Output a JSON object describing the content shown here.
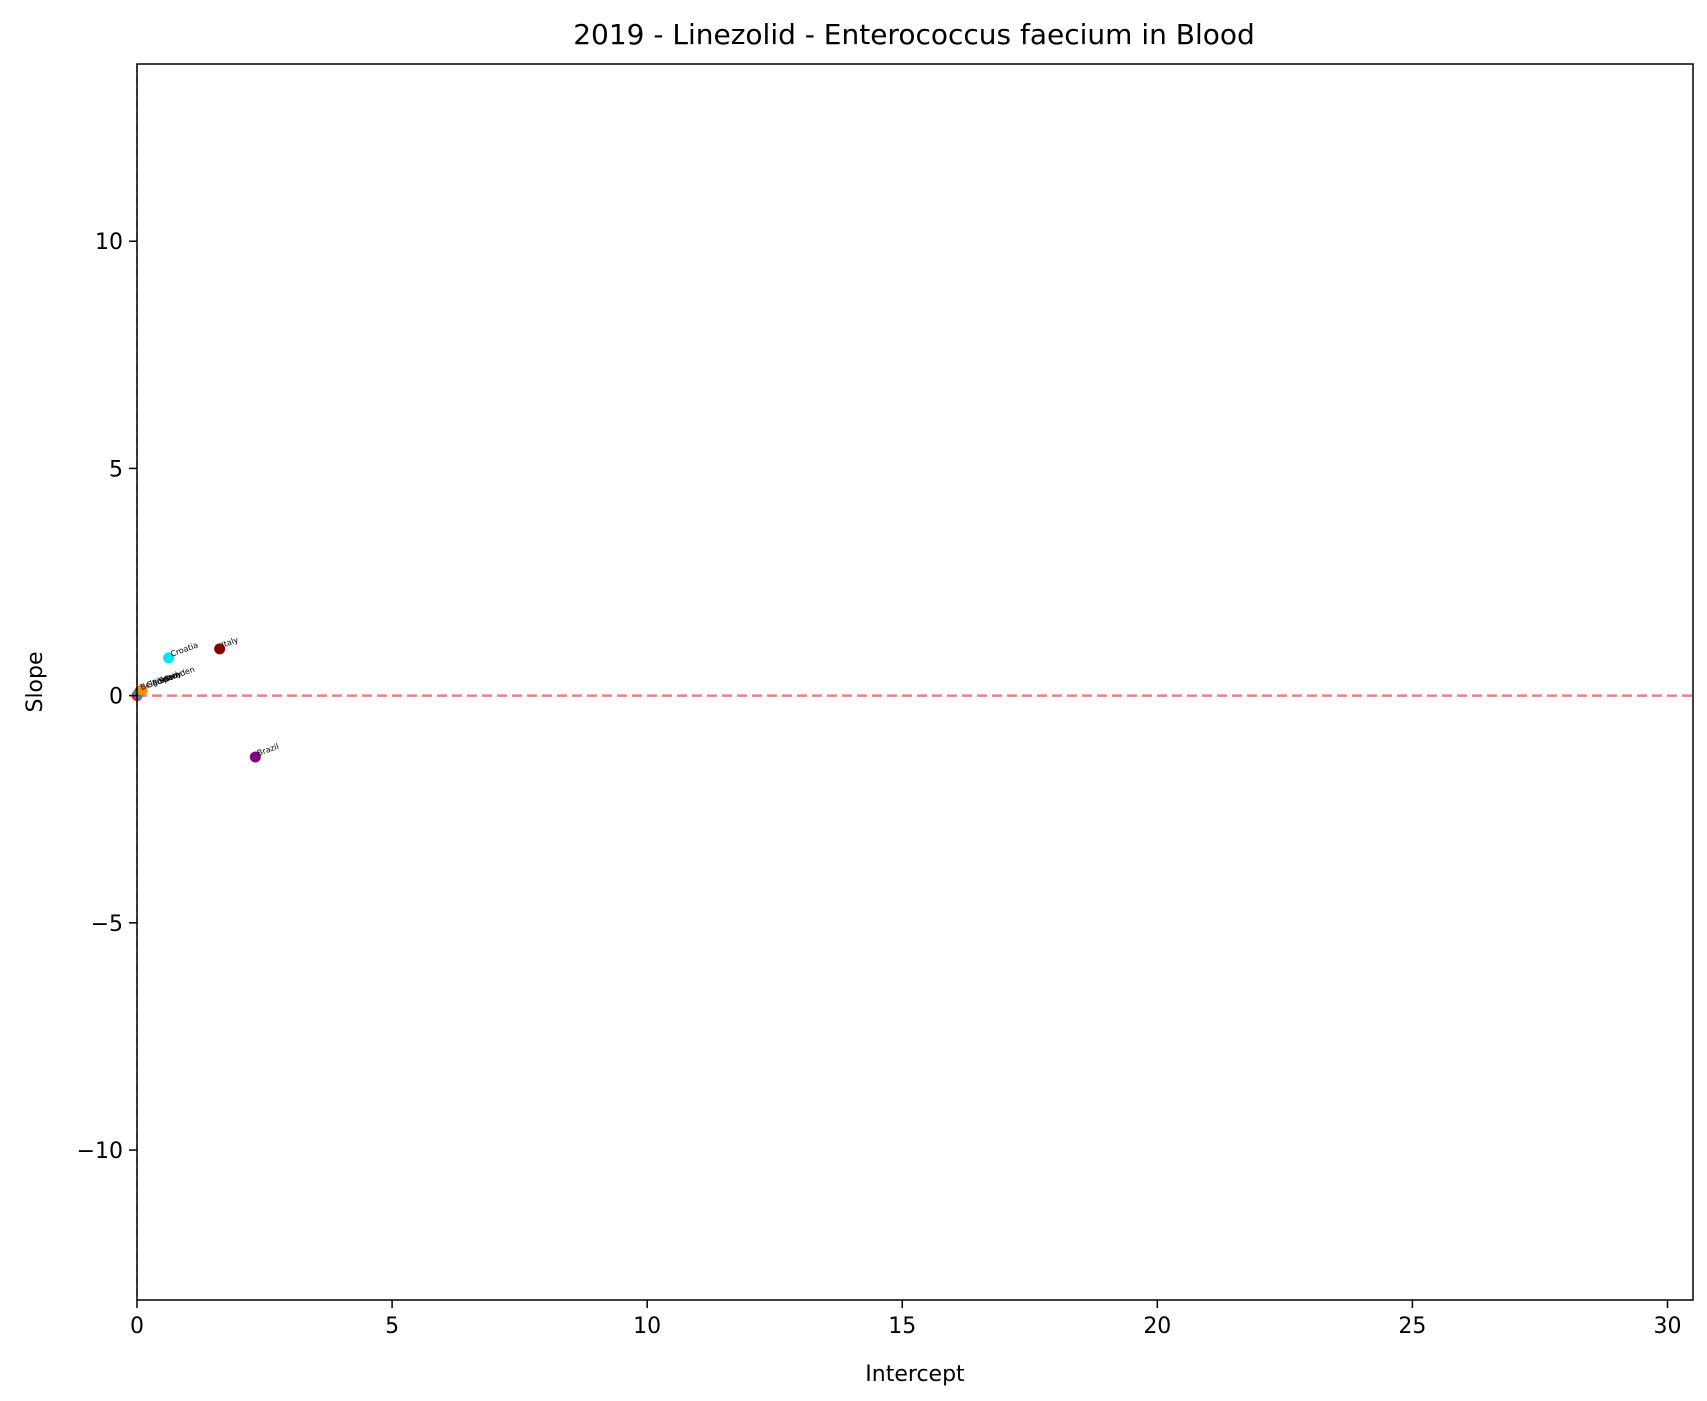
{
  "chart_data": {
    "type": "scatter",
    "title": "2019 - Linezolid - Enterococcus faecium in Blood",
    "xlabel": "Intercept",
    "ylabel": "Slope",
    "xlim": [
      0,
      30.5
    ],
    "ylim": [
      -13.3,
      13.9
    ],
    "x_ticks": [
      0,
      5,
      10,
      15,
      20,
      25,
      30
    ],
    "y_ticks": [
      -10,
      -5,
      0,
      5,
      10
    ],
    "y_tick_labels": [
      "−10",
      "−5",
      "0",
      "5",
      "10"
    ],
    "grid": false,
    "reference_lines": [
      {
        "orientation": "horizontal",
        "value": 0,
        "color": "#f08080",
        "style": "dashed"
      },
      {
        "orientation": "vertical",
        "value": 0,
        "color": "#2e8b57",
        "style": "dashed"
      }
    ],
    "points": [
      {
        "label": "Croatia",
        "x": 0.62,
        "y": 0.83,
        "color": "#00e5ee"
      },
      {
        "label": "Italy",
        "x": 1.62,
        "y": 1.03,
        "color": "#8b0000"
      },
      {
        "label": "Brazil",
        "x": 2.32,
        "y": -1.35,
        "color": "#800080"
      },
      {
        "label": "",
        "x": 0.0,
        "y": 0.0,
        "color": "#ff2020"
      },
      {
        "label": "",
        "x": 0.03,
        "y": 0.05,
        "color": "#1e90ff"
      },
      {
        "label": "",
        "x": 0.06,
        "y": 0.1,
        "color": "#228b22"
      },
      {
        "label": "",
        "x": 0.1,
        "y": 0.12,
        "color": "#ff8c00"
      }
    ],
    "overlapping_label_cluster": {
      "anchor": [
        0.05,
        0.1
      ],
      "text": "Belgium Germany Poland Spain Sweden"
    }
  }
}
